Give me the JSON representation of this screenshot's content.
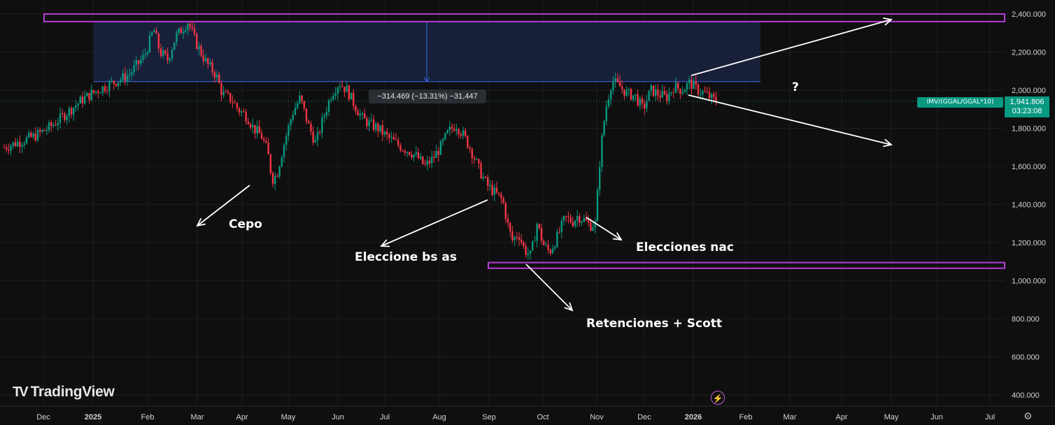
{
  "chart_data": {
    "type": "candlestick",
    "symbol_label": "IMV/(GGAL/GGAL*10)",
    "last_price": "1,941.806",
    "countdown": "03:23:08",
    "y_ticks": [
      "2,400.000",
      "2,200.000",
      "2,000.000",
      "1,800.000",
      "1,600.000",
      "1,400.000",
      "1,200.000",
      "1,000.000",
      "800.000",
      "600.000",
      "400.000"
    ],
    "y_tick_values": [
      2400,
      2200,
      2000,
      1800,
      1600,
      1400,
      1200,
      1000,
      800,
      600,
      400
    ],
    "ylim": [
      400,
      2400
    ],
    "x_ticks": [
      {
        "label": "Dec",
        "bold": false
      },
      {
        "label": "2025",
        "bold": true
      },
      {
        "label": "Feb",
        "bold": false
      },
      {
        "label": "Mar",
        "bold": false
      },
      {
        "label": "Apr",
        "bold": false
      },
      {
        "label": "May",
        "bold": false
      },
      {
        "label": "Jun",
        "bold": false
      },
      {
        "label": "Jul",
        "bold": false
      },
      {
        "label": "Aug",
        "bold": false
      },
      {
        "label": "Sep",
        "bold": false
      },
      {
        "label": "Oct",
        "bold": false
      },
      {
        "label": "Nov",
        "bold": false
      },
      {
        "label": "Dec",
        "bold": false
      },
      {
        "label": "2026",
        "bold": true
      },
      {
        "label": "Feb",
        "bold": false
      },
      {
        "label": "Mar",
        "bold": false
      },
      {
        "label": "Apr",
        "bold": false
      },
      {
        "label": "May",
        "bold": false
      },
      {
        "label": "Jun",
        "bold": false
      },
      {
        "label": "Jul",
        "bold": false
      }
    ],
    "price_path": [
      [
        0,
        1700
      ],
      [
        2,
        1760
      ],
      [
        3,
        1810
      ],
      [
        4,
        1880
      ],
      [
        5,
        1950
      ],
      [
        6,
        2000
      ],
      [
        7,
        2040
      ],
      [
        8,
        2080
      ],
      [
        9,
        2180
      ],
      [
        9.6,
        2320
      ],
      [
        10,
        2200
      ],
      [
        10.5,
        2160
      ],
      [
        11,
        2280
      ],
      [
        11.8,
        2360
      ],
      [
        12.3,
        2250
      ],
      [
        13,
        2140
      ],
      [
        13.6,
        2080
      ],
      [
        14,
        1980
      ],
      [
        14.6,
        1950
      ],
      [
        15,
        1900
      ],
      [
        15.6,
        1860
      ],
      [
        16,
        1800
      ],
      [
        16.5,
        1760
      ],
      [
        16.9,
        1680
      ],
      [
        17.2,
        1530
      ],
      [
        17.5,
        1560
      ],
      [
        17.9,
        1700
      ],
      [
        18.5,
        1880
      ],
      [
        19,
        1960
      ],
      [
        19.5,
        1820
      ],
      [
        20,
        1720
      ],
      [
        20.5,
        1860
      ],
      [
        21,
        1980
      ],
      [
        21.5,
        2040
      ],
      [
        22,
        2000
      ],
      [
        22.5,
        1920
      ],
      [
        23,
        1850
      ],
      [
        23.5,
        1820
      ],
      [
        24,
        1800
      ],
      [
        24.5,
        1760
      ],
      [
        25,
        1730
      ],
      [
        25.5,
        1700
      ],
      [
        26,
        1680
      ],
      [
        26.5,
        1650
      ],
      [
        27,
        1600
      ],
      [
        27.5,
        1640
      ],
      [
        28,
        1700
      ],
      [
        28.5,
        1780
      ],
      [
        29,
        1820
      ],
      [
        29.5,
        1760
      ],
      [
        30,
        1680
      ],
      [
        30.5,
        1580
      ],
      [
        31,
        1500
      ],
      [
        31.5,
        1460
      ],
      [
        32,
        1420
      ],
      [
        32.3,
        1300
      ],
      [
        32.6,
        1210
      ],
      [
        33,
        1250
      ],
      [
        33.4,
        1160
      ],
      [
        33.8,
        1130
      ],
      [
        34.2,
        1300
      ],
      [
        34.6,
        1190
      ],
      [
        35,
        1150
      ],
      [
        35.5,
        1230
      ],
      [
        36,
        1330
      ],
      [
        36.5,
        1310
      ],
      [
        36.8,
        1340
      ],
      [
        37.2,
        1320
      ],
      [
        37.6,
        1290
      ],
      [
        38,
        1300
      ],
      [
        38.1,
        1500
      ],
      [
        38.3,
        1700
      ],
      [
        38.6,
        1900
      ],
      [
        39,
        2050
      ],
      [
        39.5,
        2020
      ],
      [
        40,
        1980
      ],
      [
        40.5,
        1970
      ],
      [
        41,
        1900
      ],
      [
        41.5,
        2000
      ],
      [
        42,
        1980
      ],
      [
        42.5,
        1960
      ],
      [
        43,
        2020
      ],
      [
        43.5,
        2000
      ],
      [
        44,
        2040
      ],
      [
        44.5,
        2000
      ],
      [
        45,
        1980
      ],
      [
        45.5,
        1950
      ],
      [
        45.8,
        1942
      ]
    ],
    "drawings": {
      "resistance_band": [
        2360,
        2400
      ],
      "support_band": [
        1065,
        1095
      ],
      "measure_box": {
        "from": 2360,
        "to": 2045
      },
      "measure_label": "−314.469 (−13.31%) −31,447",
      "current_price": 1941.806
    },
    "annotations": [
      {
        "text": "Cepo"
      },
      {
        "text": "Eleccione bs as"
      },
      {
        "text": "Elecciones nac"
      },
      {
        "text": "Retenciones + Scott"
      },
      {
        "text": "?"
      }
    ]
  },
  "branding": {
    "logo_glyph": "TV",
    "name": "TradingView"
  },
  "colors": {
    "background": "#0f0f0f",
    "up": "#089981",
    "down": "#f23645",
    "band": "#b43cd6",
    "measure_fill": "#1a2240",
    "grid": "#1e1e1e"
  },
  "icons": {
    "bolt": "lightning-icon",
    "gear": "settings-icon"
  }
}
